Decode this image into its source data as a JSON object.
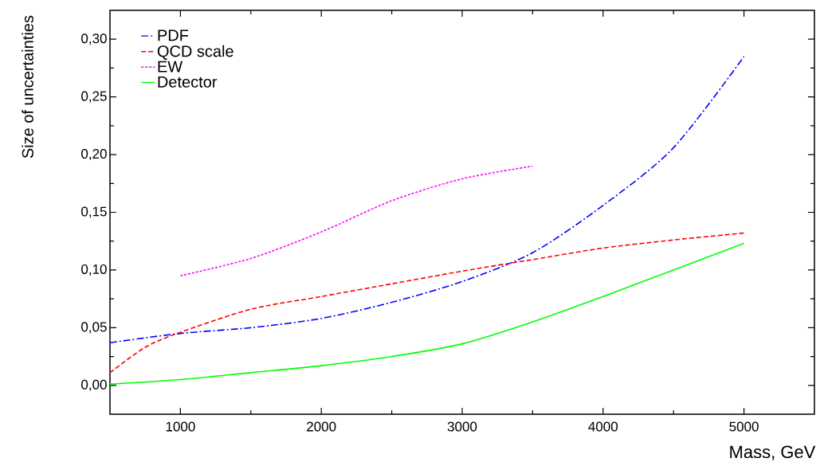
{
  "chart_data": {
    "type": "line",
    "xlabel": "Mass, GeV",
    "ylabel": "Size of uncertainties",
    "xlim": [
      500,
      5500
    ],
    "ylim": [
      -0.025,
      0.325
    ],
    "xticks": [
      1000,
      2000,
      3000,
      4000,
      5000
    ],
    "yticks": [
      {
        "value": 0,
        "label": "0,00"
      },
      {
        "value": 0.05,
        "label": "0,05"
      },
      {
        "value": 0.1,
        "label": "0,10"
      },
      {
        "value": 0.15,
        "label": "0,15"
      },
      {
        "value": 0.2,
        "label": "0,20"
      },
      {
        "value": 0.25,
        "label": "0,25"
      },
      {
        "value": 0.3,
        "label": "0,30"
      }
    ],
    "grid": false,
    "legend": "top left",
    "marker": "none",
    "series": [
      {
        "name": "PDF",
        "color": "#0000ff",
        "line_style": "dashdot",
        "x": [
          500,
          1000,
          1500,
          2000,
          2500,
          3000,
          3500,
          4000,
          4500,
          5000
        ],
        "values": [
          0.037,
          0.045,
          0.05,
          0.058,
          0.072,
          0.09,
          0.115,
          0.156,
          0.206,
          0.285
        ]
      },
      {
        "name": "QCD scale",
        "color": "#ff0000",
        "line_style": "dashed",
        "x": [
          500,
          750,
          1000,
          1500,
          2000,
          2500,
          3000,
          3500,
          4000,
          4500,
          5000
        ],
        "values": [
          0.011,
          0.033,
          0.046,
          0.066,
          0.077,
          0.088,
          0.099,
          0.109,
          0.119,
          0.126,
          0.132
        ]
      },
      {
        "name": "EW",
        "color": "#ff00ff",
        "line_style": "dotted",
        "x": [
          1000,
          1500,
          2000,
          2500,
          3000,
          3500
        ],
        "values": [
          0.095,
          0.11,
          0.133,
          0.16,
          0.179,
          0.19
        ]
      },
      {
        "name": "Detector",
        "color": "#00ff00",
        "line_style": "solid",
        "x": [
          500,
          1000,
          1500,
          2000,
          2500,
          3000,
          3500,
          4000,
          4500,
          5000
        ],
        "values": [
          0.001,
          0.005,
          0.011,
          0.017,
          0.025,
          0.036,
          0.055,
          0.077,
          0.1,
          0.123
        ]
      }
    ]
  }
}
